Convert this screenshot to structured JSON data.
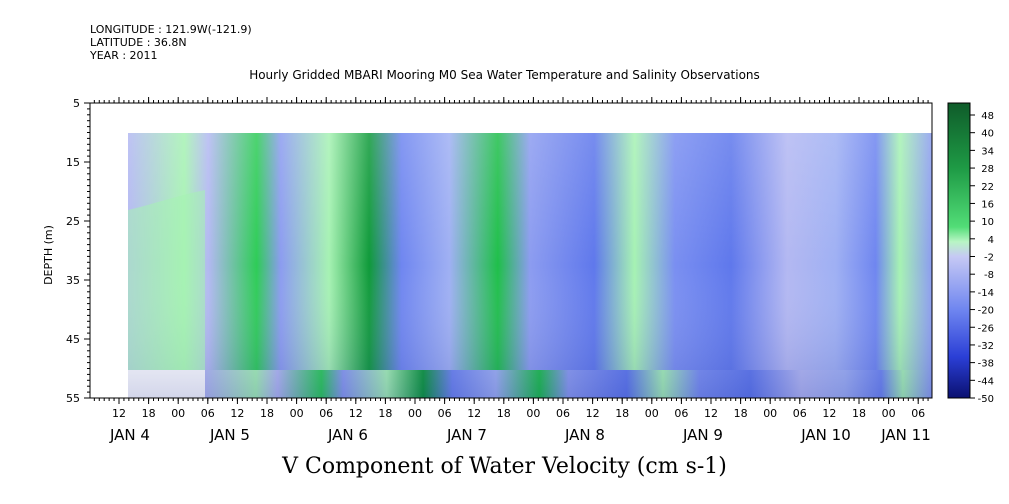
{
  "header": {
    "longitude": "LONGITUDE : 121.9W(-121.9)",
    "latitude": "LATITUDE : 36.8N",
    "year": "YEAR : 2011"
  },
  "chart_data": {
    "type": "heatmap",
    "title": "Hourly Gridded MBARI Mooring M0 Sea Water Temperature and Salinity Observations",
    "xlabel": "V Component of Water Velocity (cm s-1)",
    "ylabel": "DEPTH (m)",
    "y_ticks": [
      "5",
      "15",
      "25",
      "35",
      "45",
      "55"
    ],
    "y_range": [
      5,
      55
    ],
    "x_hour_ticks": [
      "12",
      "18",
      "00",
      "06",
      "12",
      "18",
      "00",
      "06",
      "12",
      "18",
      "00",
      "06",
      "12",
      "18",
      "00",
      "06",
      "12",
      "18",
      "00",
      "06",
      "12",
      "18",
      "00",
      "06",
      "12",
      "18",
      "00",
      "06"
    ],
    "x_day_labels": [
      "JAN  4",
      "JAN  5",
      "JAN  6",
      "JAN  7",
      "JAN  8",
      "JAN  9",
      "JAN 10",
      "JAN 11"
    ],
    "colorbar_labels": [
      "48",
      "40",
      "34",
      "28",
      "22",
      "16",
      "10",
      "4",
      "-2",
      "-8",
      "-14",
      "-20",
      "-26",
      "-32",
      "-38",
      "-44",
      "-50"
    ],
    "colors": {
      "strong_positive": "#0f5c2a",
      "positive": "#2ecc57",
      "weak_positive": "#a6f2b3",
      "weak_negative": "#b3b8f2",
      "negative": "#6f86f0",
      "strong_negative": "#0a1a8c"
    }
  }
}
